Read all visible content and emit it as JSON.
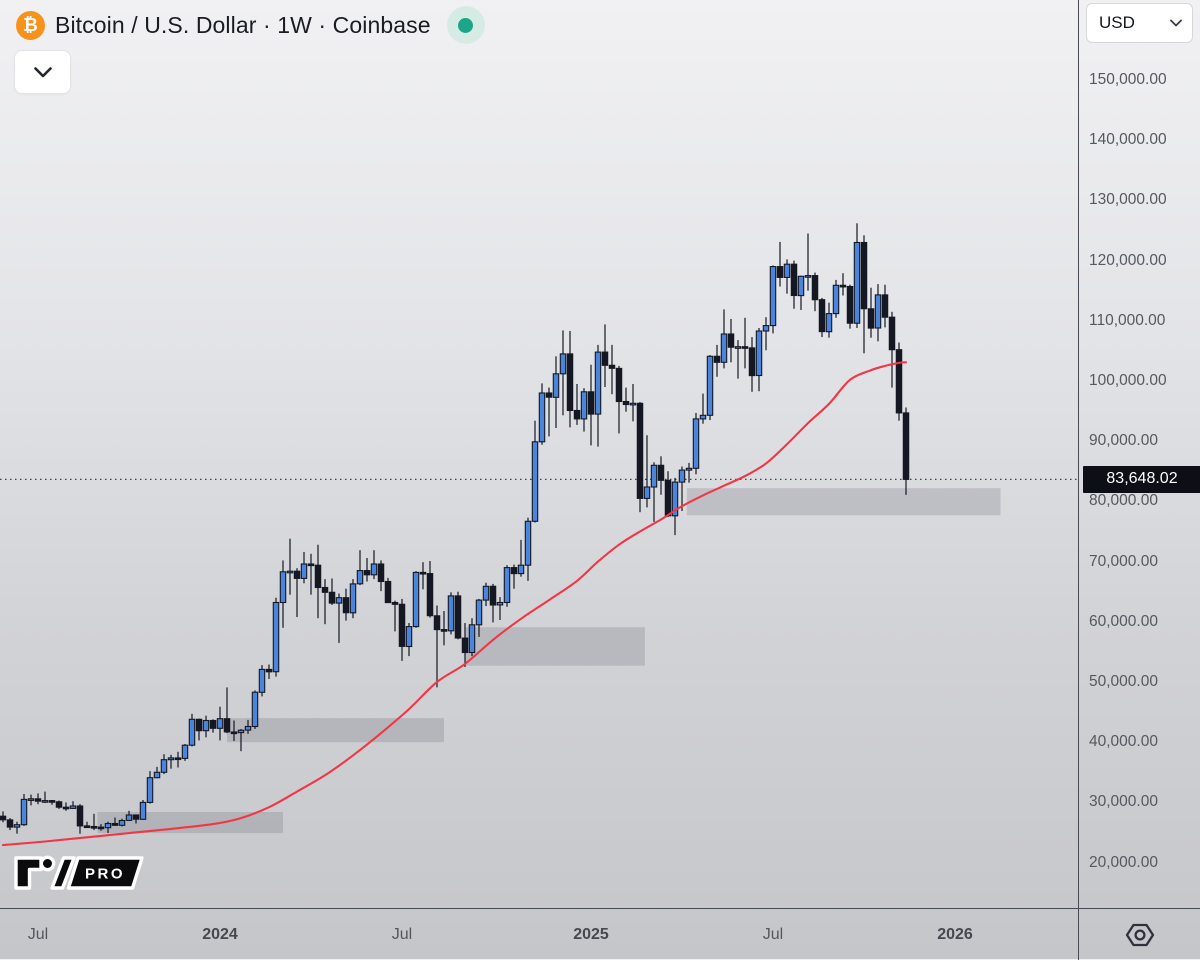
{
  "header": {
    "symbol_title": "Bitcoin / U.S. Dollar · 1W · Coinbase",
    "coin_glyph": "₿",
    "status_color": "#1da58a"
  },
  "price_scale": {
    "currency_label": "USD",
    "current_price_label": "83,648.02",
    "current_price_value": 83648.02,
    "ticks": [
      {
        "value": 150000,
        "label": "150,000.00"
      },
      {
        "value": 140000,
        "label": "140,000.00"
      },
      {
        "value": 130000,
        "label": "130,000.00"
      },
      {
        "value": 120000,
        "label": "120,000.00"
      },
      {
        "value": 110000,
        "label": "110,000.00"
      },
      {
        "value": 100000,
        "label": "100,000.00"
      },
      {
        "value": 90000,
        "label": "90,000.00"
      },
      {
        "value": 80000,
        "label": "80,000.00"
      },
      {
        "value": 70000,
        "label": "70,000.00"
      },
      {
        "value": 60000,
        "label": "60,000.00"
      },
      {
        "value": 50000,
        "label": "50,000.00"
      },
      {
        "value": 40000,
        "label": "40,000.00"
      },
      {
        "value": 30000,
        "label": "30,000.00"
      },
      {
        "value": 20000,
        "label": "20,000.00"
      }
    ]
  },
  "time_scale": {
    "ticks": [
      {
        "week": 5,
        "label": "Jul",
        "bold": false
      },
      {
        "week": 31,
        "label": "2024",
        "bold": true
      },
      {
        "week": 57,
        "label": "Jul",
        "bold": false
      },
      {
        "week": 84,
        "label": "2025",
        "bold": true
      },
      {
        "week": 110,
        "label": "Jul",
        "bold": false
      },
      {
        "week": 136,
        "label": "2026",
        "bold": true
      }
    ]
  },
  "logo": {
    "pro_label": "PRO"
  },
  "chart_data": {
    "type": "candlestick",
    "title": "Bitcoin / U.S. Dollar · 1W · Coinbase",
    "interval": "1W",
    "exchange": "Coinbase",
    "y_axis": {
      "min": 14000,
      "max": 163000,
      "tick_step": 10000,
      "grid": false
    },
    "current_price": 83648.02,
    "colors": {
      "up": "#4c84dc",
      "down": "#151823",
      "border": "#151823",
      "wick": "#151823",
      "ma": "#f23645",
      "zone": "rgba(103,106,118,0.24)",
      "price_line": "#3c404b"
    },
    "candles_ohlc": [
      [
        27700,
        28500,
        26700,
        27100
      ],
      [
        27100,
        27400,
        25400,
        25900
      ],
      [
        25900,
        26800,
        24800,
        26300
      ],
      [
        26300,
        31400,
        26100,
        30500
      ],
      [
        30500,
        31300,
        29500,
        30600
      ],
      [
        30600,
        31500,
        29700,
        30200
      ],
      [
        30200,
        31800,
        29900,
        30300
      ],
      [
        30300,
        30400,
        29600,
        30100
      ],
      [
        30100,
        30300,
        28900,
        29200
      ],
      [
        29200,
        30000,
        28600,
        29000
      ],
      [
        29000,
        30200,
        28900,
        29400
      ],
      [
        29400,
        29700,
        24800,
        26100
      ],
      [
        26100,
        26800,
        25800,
        26000
      ],
      [
        26000,
        28100,
        25400,
        25900
      ],
      [
        25900,
        26400,
        25300,
        25800
      ],
      [
        25800,
        26800,
        24900,
        26500
      ],
      [
        26500,
        27500,
        26100,
        26200
      ],
      [
        26200,
        27300,
        26000,
        27000
      ],
      [
        27000,
        28600,
        27000,
        27900
      ],
      [
        27900,
        28000,
        26500,
        27200
      ],
      [
        27200,
        30400,
        27100,
        30000
      ],
      [
        30000,
        35200,
        29800,
        34100
      ],
      [
        34100,
        35900,
        34000,
        35000
      ],
      [
        35000,
        38000,
        34700,
        37100
      ],
      [
        37100,
        37900,
        35600,
        37400
      ],
      [
        37400,
        38400,
        35800,
        37300
      ],
      [
        37300,
        39700,
        36900,
        39500
      ],
      [
        39500,
        44700,
        39300,
        43800
      ],
      [
        43800,
        43900,
        40300,
        41900
      ],
      [
        41900,
        44400,
        40800,
        43600
      ],
      [
        43600,
        43800,
        41600,
        42300
      ],
      [
        42300,
        45900,
        40300,
        43900
      ],
      [
        43900,
        49100,
        41500,
        41700
      ],
      [
        41700,
        43600,
        40200,
        41600
      ],
      [
        41600,
        42200,
        38500,
        42000
      ],
      [
        42000,
        43700,
        41400,
        42600
      ],
      [
        42600,
        48600,
        42200,
        48300
      ],
      [
        48300,
        52800,
        47600,
        52100
      ],
      [
        52100,
        52900,
        50500,
        51700
      ],
      [
        51700,
        64000,
        50900,
        63200
      ],
      [
        63200,
        70200,
        59000,
        68300
      ],
      [
        68300,
        73800,
        64500,
        68400
      ],
      [
        68400,
        68900,
        60800,
        67200
      ],
      [
        67200,
        71600,
        66400,
        69600
      ],
      [
        69600,
        71300,
        64500,
        69400
      ],
      [
        69400,
        72800,
        60600,
        65700
      ],
      [
        65700,
        67100,
        59600,
        64900
      ],
      [
        64900,
        67200,
        62800,
        63100
      ],
      [
        63100,
        64700,
        56500,
        64000
      ],
      [
        64000,
        65500,
        60200,
        61500
      ],
      [
        61500,
        67100,
        60600,
        66300
      ],
      [
        66300,
        71900,
        66100,
        68500
      ],
      [
        68500,
        70600,
        66700,
        67800
      ],
      [
        67800,
        71900,
        67100,
        69600
      ],
      [
        69600,
        70200,
        65100,
        66700
      ],
      [
        66700,
        67300,
        63400,
        63200
      ],
      [
        63200,
        63500,
        58400,
        62900
      ],
      [
        62900,
        63800,
        53500,
        55900
      ],
      [
        55900,
        59800,
        54300,
        59200
      ],
      [
        59200,
        68400,
        59000,
        68200
      ],
      [
        68200,
        69900,
        65400,
        68000
      ],
      [
        68000,
        70100,
        60700,
        61000
      ],
      [
        61000,
        62700,
        49100,
        58700
      ],
      [
        58700,
        61800,
        56100,
        58500
      ],
      [
        58500,
        64900,
        57900,
        64300
      ],
      [
        64300,
        65000,
        57100,
        57300
      ],
      [
        57300,
        59800,
        52500,
        54900
      ],
      [
        54900,
        60600,
        54300,
        59500
      ],
      [
        59500,
        63800,
        57500,
        63600
      ],
      [
        63600,
        66500,
        62600,
        65900
      ],
      [
        65900,
        66300,
        59900,
        62800
      ],
      [
        62800,
        64100,
        60300,
        63200
      ],
      [
        63200,
        69400,
        62500,
        69000
      ],
      [
        69000,
        69500,
        65500,
        68000
      ],
      [
        68000,
        73600,
        67500,
        69400
      ],
      [
        69400,
        77300,
        66800,
        76700
      ],
      [
        76700,
        93400,
        76500,
        89900
      ],
      [
        89900,
        99600,
        89400,
        98000
      ],
      [
        98000,
        98900,
        90800,
        97300
      ],
      [
        97300,
        104100,
        92200,
        101200
      ],
      [
        101200,
        108400,
        94300,
        104500
      ],
      [
        104500,
        108300,
        92300,
        95100
      ],
      [
        95100,
        99500,
        92700,
        93700
      ],
      [
        93700,
        98800,
        91600,
        98200
      ],
      [
        98200,
        102700,
        89300,
        94500
      ],
      [
        94500,
        106000,
        89100,
        104800
      ],
      [
        104800,
        109400,
        99000,
        102600
      ],
      [
        102600,
        106000,
        97800,
        102100
      ],
      [
        102100,
        102500,
        91300,
        96600
      ],
      [
        96600,
        98900,
        94900,
        96100
      ],
      [
        96100,
        99500,
        93300,
        96300
      ],
      [
        96300,
        96500,
        78200,
        80500
      ],
      [
        80500,
        91000,
        79000,
        82400
      ],
      [
        82400,
        86500,
        76600,
        86000
      ],
      [
        86000,
        87500,
        81100,
        83500
      ],
      [
        83500,
        85000,
        77400,
        77600
      ],
      [
        77600,
        83900,
        74400,
        83200
      ],
      [
        83200,
        85800,
        78400,
        85200
      ],
      [
        85200,
        86400,
        83100,
        85500
      ],
      [
        85500,
        94700,
        84500,
        93700
      ],
      [
        93700,
        97900,
        92900,
        94300
      ],
      [
        94300,
        104300,
        93500,
        104100
      ],
      [
        104100,
        106000,
        100700,
        103100
      ],
      [
        103100,
        111900,
        102100,
        107800
      ],
      [
        107800,
        110300,
        103100,
        105600
      ],
      [
        105600,
        106800,
        100400,
        105700
      ],
      [
        105700,
        110500,
        102100,
        105500
      ],
      [
        105500,
        107300,
        98200,
        100900
      ],
      [
        100900,
        108800,
        98300,
        108300
      ],
      [
        108300,
        110600,
        105100,
        109200
      ],
      [
        109200,
        119200,
        107900,
        119000
      ],
      [
        119000,
        123100,
        115700,
        117200
      ],
      [
        117200,
        120200,
        114500,
        119400
      ],
      [
        119400,
        120000,
        112000,
        114200
      ],
      [
        114200,
        117500,
        111800,
        117400
      ],
      [
        117400,
        124500,
        115000,
        117500
      ],
      [
        117500,
        118000,
        111600,
        113500
      ],
      [
        113500,
        113800,
        107300,
        108200
      ],
      [
        108200,
        113000,
        107200,
        111200
      ],
      [
        111200,
        116800,
        110500,
        115900
      ],
      [
        115900,
        117900,
        114200,
        115700
      ],
      [
        115700,
        116000,
        108700,
        109600
      ],
      [
        109600,
        126200,
        108800,
        123000
      ],
      [
        123000,
        124200,
        104600,
        112000
      ],
      [
        112000,
        115500,
        107200,
        108800
      ],
      [
        108800,
        116100,
        106600,
        114300
      ],
      [
        114300,
        116000,
        108900,
        110600
      ],
      [
        110600,
        111500,
        98900,
        105200
      ],
      [
        105200,
        106400,
        93400,
        94700
      ],
      [
        94700,
        95600,
        81100,
        83648.02
      ]
    ],
    "ma_line": {
      "name": "moving-average",
      "color": "#f23645",
      "points": [
        [
          0,
          22900
        ],
        [
          6,
          23500
        ],
        [
          12,
          24200
        ],
        [
          18,
          24900
        ],
        [
          24,
          25600
        ],
        [
          30,
          26400
        ],
        [
          34,
          27400
        ],
        [
          38,
          29200
        ],
        [
          42,
          31800
        ],
        [
          46,
          34500
        ],
        [
          50,
          37800
        ],
        [
          54,
          41500
        ],
        [
          58,
          45500
        ],
        [
          62,
          50000
        ],
        [
          66,
          53000
        ],
        [
          70,
          57000
        ],
        [
          74,
          60500
        ],
        [
          78,
          63600
        ],
        [
          82,
          66800
        ],
        [
          85,
          70000
        ],
        [
          88,
          72800
        ],
        [
          91,
          75000
        ],
        [
          94,
          77000
        ],
        [
          97,
          79200
        ],
        [
          100,
          81000
        ],
        [
          103,
          82600
        ],
        [
          106,
          84200
        ],
        [
          109,
          86300
        ],
        [
          112,
          89500
        ],
        [
          115,
          93000
        ],
        [
          118,
          96200
        ],
        [
          121,
          100200
        ],
        [
          124,
          101800
        ],
        [
          126,
          102500
        ],
        [
          128,
          103000
        ],
        [
          129,
          103100
        ]
      ]
    },
    "zones": [
      {
        "week_start": 13.5,
        "week_end": 40,
        "price_top": 28400,
        "price_bottom": 24900
      },
      {
        "week_start": 32,
        "week_end": 63,
        "price_top": 44000,
        "price_bottom": 40000
      },
      {
        "week_start": 66,
        "week_end": 91.7,
        "price_top": 59100,
        "price_bottom": 52700
      },
      {
        "week_start": 97.7,
        "week_end": 142.5,
        "price_top": 82200,
        "price_bottom": 77700
      }
    ]
  }
}
